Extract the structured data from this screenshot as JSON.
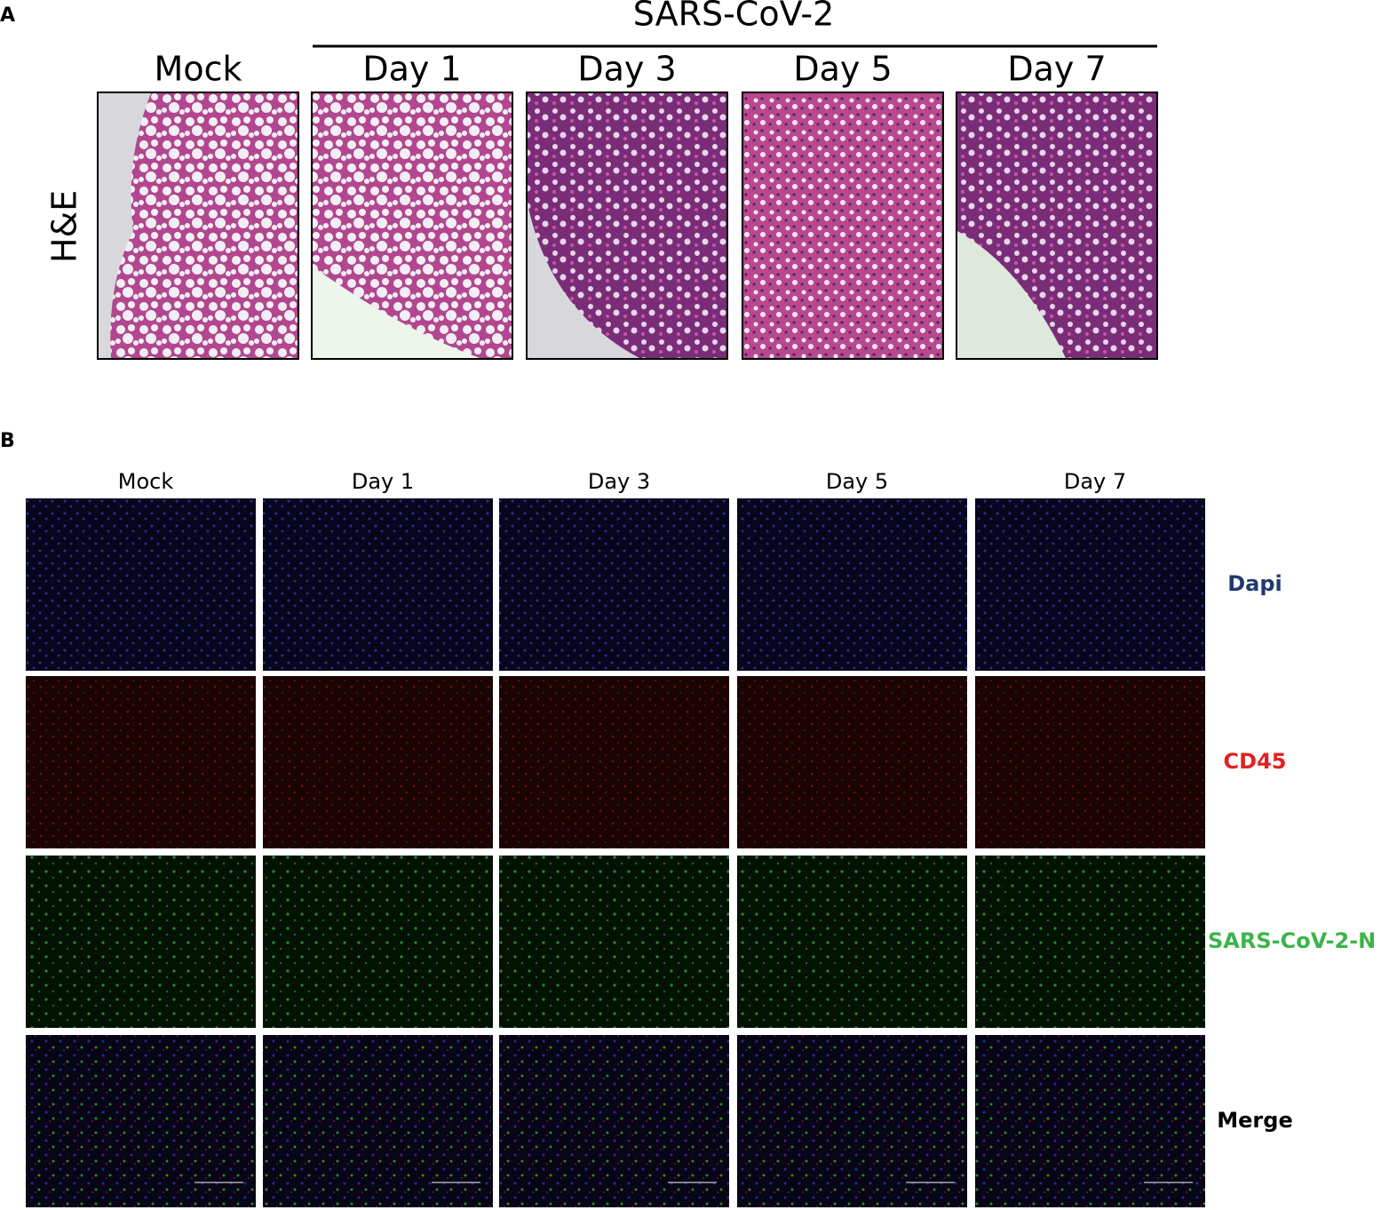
{
  "panel_a": {
    "label": "A",
    "group": "SARS-CoV-2",
    "columns": [
      "Mock",
      "Day 1",
      "Day 3",
      "Day 5",
      "Day 7"
    ],
    "row_label": "H&E"
  },
  "panel_b": {
    "label": "B",
    "columns": [
      "Mock",
      "Day 1",
      "Day 3",
      "Day 5",
      "Day 7"
    ],
    "rows": [
      "Dapi",
      "CD45",
      "SARS-CoV-2-N",
      "Merge"
    ]
  }
}
